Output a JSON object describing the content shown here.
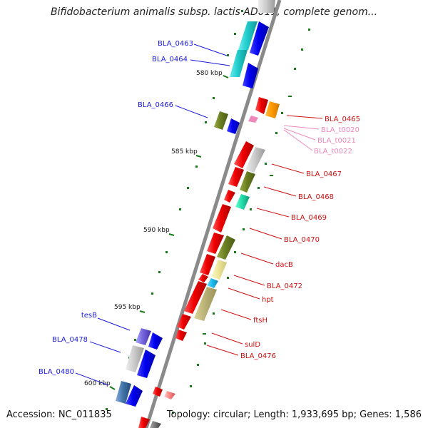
{
  "header": {
    "title": "Bifidobacterium animalis subsp. lactis AD011, complete genom..."
  },
  "footer": {
    "accession": "Accession: NC_011835",
    "topology": "Topology: circular; Length: 1,933,695 bp; Genes: 1,586"
  },
  "scale_labels": [
    "580 kbp",
    "585 kbp",
    "590 kbp",
    "595 kbp",
    "600 kbp"
  ],
  "left_genes": [
    "BLA_0463",
    "BLA_0464",
    "BLA_0466",
    "tesB",
    "BLA_0478",
    "BLA_0480"
  ],
  "right_genes": [
    "BLA_0465",
    "BLA_0467",
    "BLA_0468",
    "BLA_0469",
    "BLA_0470",
    "dacB",
    "BLA_0472",
    "hpt",
    "ftsH",
    "sulD",
    "BLA_0476"
  ],
  "trna_genes": [
    "BLA_t0020",
    "BLA_t0021",
    "BLA_t0022"
  ],
  "colors": {
    "left_label": "#1a1adb",
    "right_label": "#cc1111",
    "trna_label": "#ee88bb",
    "backbone": "#8a8a8a",
    "ticks": "#1a7a1a"
  }
}
